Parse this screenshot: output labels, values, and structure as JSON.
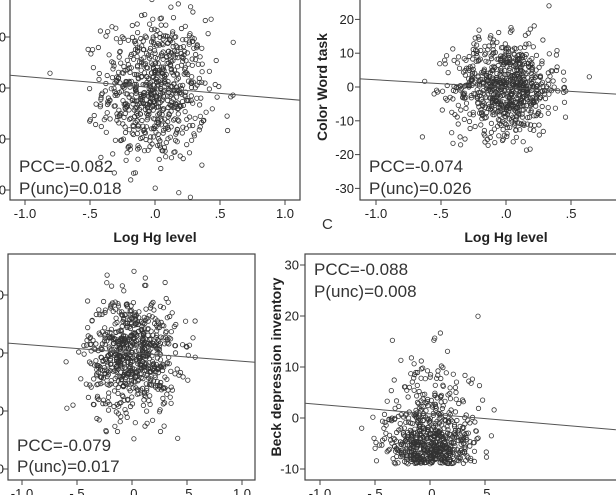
{
  "chart_data": [
    {
      "type": "scatter",
      "xlabel": "Log Hg level",
      "ylabel": "",
      "xticks": [
        "-1.0",
        "-.5",
        ".0",
        ".5",
        "1.0"
      ],
      "xtick_values": [
        -1.0,
        -0.5,
        0.0,
        0.5,
        1.0
      ],
      "ytick_labels_visible": [
        "0",
        "0",
        "0",
        "0"
      ],
      "annotation": [
        "PCC=-0.082",
        "P(unc)=0.018"
      ],
      "fit_line": {
        "x": [
          -1.12,
          1.12
        ],
        "y": [
          2.25,
          1.76
        ]
      },
      "point_style": "open circle",
      "grid": false
    },
    {
      "type": "scatter",
      "xlabel": "Log Hg level",
      "ylabel": "Color Word task",
      "xticks": [
        "-1.0",
        "-.5",
        ".0",
        ".5"
      ],
      "xtick_values": [
        -1.0,
        -0.5,
        0.0,
        0.5
      ],
      "yticks": [
        "20",
        "10",
        "0",
        "-10",
        "-20",
        "-30"
      ],
      "ytick_values": [
        20,
        10,
        0,
        -10,
        -20,
        -30
      ],
      "ylim": [
        -31,
        25
      ],
      "annotation": [
        "PCC=-0.074",
        "P(unc)=0.026"
      ],
      "panel_label": "C",
      "fit_line": {
        "x": [
          -1.12,
          0.85
        ],
        "y": [
          2.4,
          -2.1
        ]
      },
      "point_style": "open circle",
      "grid": false
    },
    {
      "type": "scatter",
      "xlabel": "",
      "ylabel": "",
      "xticks": [
        "-1.0",
        "-.5",
        ".0",
        ".5",
        "1.0"
      ],
      "xtick_values": [
        -1.0,
        -0.5,
        0.0,
        0.5,
        1.0
      ],
      "ytick_labels_visible": [
        "0",
        "0",
        "0",
        "0"
      ],
      "annotation": [
        "PCC=-0.079",
        "P(unc)=0.017"
      ],
      "fit_line": {
        "x": [
          -1.13,
          1.12
        ],
        "y": [
          2.17,
          1.84
        ]
      },
      "point_style": "open circle",
      "grid": false
    },
    {
      "type": "scatter",
      "xlabel": "",
      "ylabel": "Beck depression inventory",
      "xticks": [
        "-1.0",
        "-.5",
        ".0",
        ".5"
      ],
      "xtick_values": [
        -1.0,
        -0.5,
        0.0,
        0.5
      ],
      "yticks": [
        "30",
        "20",
        "10",
        "0",
        "-10"
      ],
      "ytick_values": [
        30,
        20,
        10,
        0,
        -10
      ],
      "ylim": [
        -12,
        32
      ],
      "annotation": [
        "PCC=-0.088",
        "P(unc)=0.008"
      ],
      "fit_line": {
        "x": [
          -1.14,
          1.69
        ],
        "y": [
          2.9,
          -2.3
        ]
      },
      "point_style": "open circle",
      "grid": false
    }
  ]
}
